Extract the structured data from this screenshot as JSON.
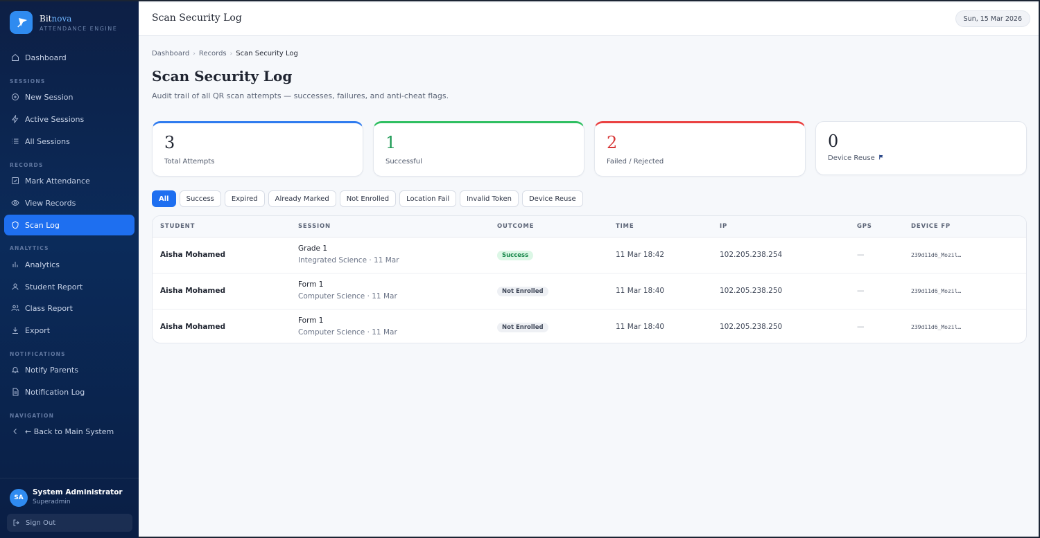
{
  "brand": {
    "name_main": "Bit",
    "name_accent": "nova",
    "subtitle": "ATTENDANCE ENGINE"
  },
  "sidebar": {
    "dashboard": "Dashboard",
    "section_sessions": "SESSIONS",
    "new_session": "New Session",
    "active_sessions": "Active Sessions",
    "all_sessions": "All Sessions",
    "section_records": "RECORDS",
    "mark_attendance": "Mark Attendance",
    "view_records": "View Records",
    "scan_log": "Scan Log",
    "section_analytics": "ANALYTICS",
    "analytics": "Analytics",
    "student_report": "Student Report",
    "class_report": "Class Report",
    "export": "Export",
    "section_notifications": "NOTIFICATIONS",
    "notify_parents": "Notify Parents",
    "notification_log": "Notification Log",
    "section_navigation": "NAVIGATION",
    "back_main": "← Back to Main System"
  },
  "user": {
    "initials": "SA",
    "name": "System Administrator",
    "role": "Superadmin",
    "sign_out": "Sign Out"
  },
  "topbar": {
    "title": "Scan Security Log",
    "date": "Sun, 15 Mar 2026"
  },
  "breadcrumb": {
    "item1": "Dashboard",
    "item2": "Records",
    "current": "Scan Security Log"
  },
  "page": {
    "title": "Scan Security Log",
    "description": "Audit trail of all QR scan attempts — successes, failures, and anti-cheat flags."
  },
  "stats": {
    "total": {
      "value": "3",
      "label": "Total Attempts"
    },
    "success": {
      "value": "1",
      "label": "Successful"
    },
    "failed": {
      "value": "2",
      "label": "Failed / Rejected"
    },
    "reuse": {
      "value": "0",
      "label": "Device Reuse"
    }
  },
  "filters": {
    "all": "All",
    "success": "Success",
    "expired": "Expired",
    "already_marked": "Already Marked",
    "not_enrolled": "Not Enrolled",
    "location_fail": "Location Fail",
    "invalid_token": "Invalid Token",
    "device_reuse": "Device Reuse"
  },
  "table": {
    "headers": {
      "student": "STUDENT",
      "session": "SESSION",
      "outcome": "OUTCOME",
      "time": "TIME",
      "ip": "IP",
      "gps": "GPS",
      "device_fp": "DEVICE FP"
    },
    "rows": [
      {
        "student": "Aisha Mohamed",
        "session_class": "Grade 1",
        "session_detail": "Integrated Science · 11 Mar",
        "outcome": "Success",
        "time": "11 Mar 18:42",
        "ip": "102.205.238.254",
        "gps": "—",
        "device_fp": "239d11d6_Mozil…"
      },
      {
        "student": "Aisha Mohamed",
        "session_class": "Form 1",
        "session_detail": "Computer Science · 11 Mar",
        "outcome": "Not Enrolled",
        "time": "11 Mar 18:40",
        "ip": "102.205.238.250",
        "gps": "—",
        "device_fp": "239d11d6_Mozil…"
      },
      {
        "student": "Aisha Mohamed",
        "session_class": "Form 1",
        "session_detail": "Computer Science · 11 Mar",
        "outcome": "Not Enrolled",
        "time": "11 Mar 18:40",
        "ip": "102.205.238.250",
        "gps": "—",
        "device_fp": "239d11d6_Mozil…"
      }
    ]
  },
  "colors": {
    "accent": "#1e6ff0",
    "success": "#1c9a54",
    "danger": "#d73636",
    "sidebar_bg": "#0b2b5a"
  }
}
